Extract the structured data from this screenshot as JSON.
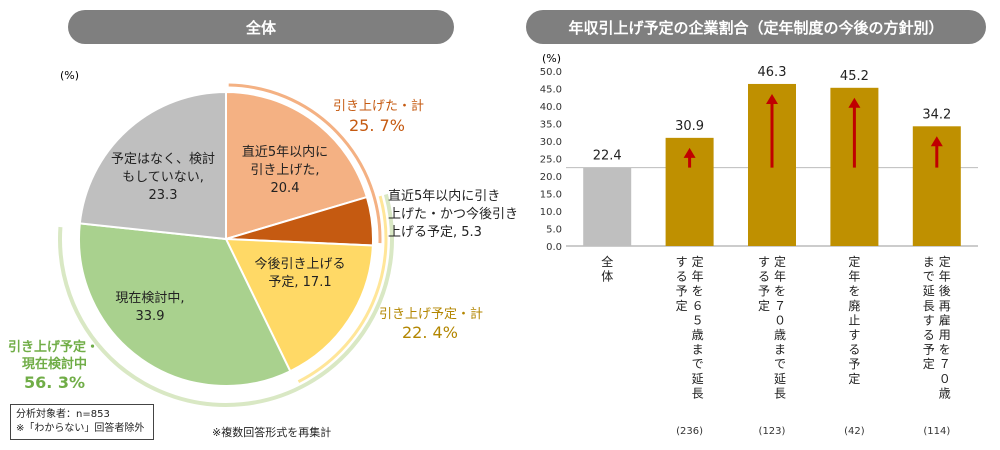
{
  "left_panel": {
    "header": "全体",
    "unit": "(%)",
    "slices": [
      {
        "name": "直近5年以内に引き上げた",
        "value": 20.4,
        "color": "#f4b183",
        "label": [
          "直近5年以内に",
          "引き上げた,",
          "20.4"
        ]
      },
      {
        "name": "直近5年以内に引き上げた・かつ今後引き上げる予定",
        "value": 5.3,
        "color": "#c55a11",
        "label": [
          "直近5年以内に引き",
          "上げた・かつ今後引き",
          "上げる予定, 5.3"
        ]
      },
      {
        "name": "今後引き上げる予定",
        "value": 17.1,
        "color": "#ffd966",
        "label": [
          "今後引き上げる",
          "予定, 17.1"
        ]
      },
      {
        "name": "現在検討中",
        "value": 33.9,
        "color": "#a9d18e",
        "label": [
          "現在検討中,",
          "33.9"
        ]
      },
      {
        "name": "予定はなく、検討もしていない",
        "value": 23.3,
        "color": "#bfbfbf",
        "label": [
          "予定はなく、検討",
          "もしていない,",
          "23.3"
        ]
      }
    ],
    "groups": [
      {
        "title": "引き上げた・計",
        "value": "25. 7%",
        "color": "#c55a11"
      },
      {
        "title": "引き上げ予定・計",
        "value": "22. 4%",
        "color": "#b38600"
      },
      {
        "title_lines": [
          "引き上げ予定・",
          "現在検討中"
        ],
        "value": "56. 3%",
        "color": "#70ad47"
      }
    ],
    "notes_box": [
      "分析対象者：n=853",
      "※「わからない」回答者除外"
    ],
    "note": "※複数回答形式を再集計"
  },
  "right_panel": {
    "header": "年収引上げ予定の企業割合（定年制度の今後の方針別）",
    "unit": "(%)"
  },
  "chart_data": [
    {
      "type": "pie",
      "title": "全体",
      "categories": [
        "直近5年以内に引き上げた",
        "直近5年以内に引き上げた・かつ今後引き上げる予定",
        "今後引き上げる予定",
        "現在検討中",
        "予定はなく、検討もしていない"
      ],
      "values": [
        20.4,
        5.3,
        17.1,
        33.9,
        23.3
      ],
      "unit": "%"
    },
    {
      "type": "bar",
      "title": "年収引上げ予定の企業割合（定年制度の今後の方針別）",
      "categories": [
        "全体",
        "定年を６５歳まで延長する予定",
        "定年を７０歳まで延長する予定",
        "定年を廃止する予定",
        "定年後再雇用を７０歳まで延長する予定"
      ],
      "category_lines": [
        [
          "全体"
        ],
        [
          "定年を６５歳まで延長",
          "する予定"
        ],
        [
          "定年を７０歳まで延長",
          "する予定"
        ],
        [
          "定年を廃止する予定"
        ],
        [
          "定年後再雇用を７０歳",
          "まで延長する予定"
        ]
      ],
      "n_labels": [
        "",
        "(236)",
        "(123)",
        "(42)",
        "(114)"
      ],
      "values": [
        22.4,
        30.9,
        46.3,
        45.2,
        34.2
      ],
      "value_labels": [
        "22.4",
        "30.9",
        "46.3",
        "45.2",
        "34.2"
      ],
      "colors": [
        "#bfbfbf",
        "#bf9000",
        "#bf9000",
        "#bf9000",
        "#bf9000"
      ],
      "arrow_color": "#c00000",
      "ylabel": "(%)",
      "ylim": [
        0,
        50
      ],
      "yticks": [
        "0.0",
        "5.0",
        "10.0",
        "15.0",
        "20.0",
        "25.0",
        "30.0",
        "35.0",
        "40.0",
        "45.0",
        "50.0"
      ],
      "reference_line": 22.4
    }
  ]
}
